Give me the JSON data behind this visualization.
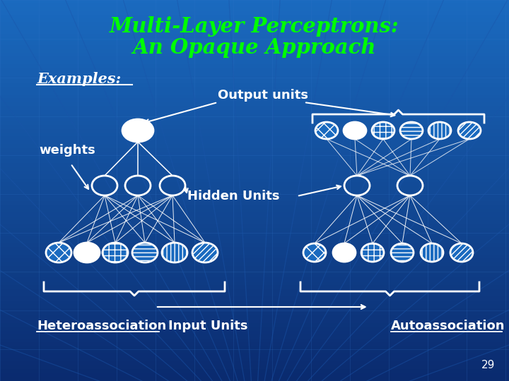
{
  "title_line1": "Multi-Layer Perceptrons:",
  "title_line2": "An Opaque Approach",
  "title_color": "#00ff00",
  "bg_color_top": "#1a6abf",
  "bg_color_bottom": "#0a2a6e",
  "label_examples": "Examples:",
  "label_output": "Output units",
  "label_weights": "weights",
  "label_hidden": "Hidden Units",
  "label_hetero": "Heteroassociation",
  "label_input": "Input Units",
  "label_auto": "Autoassociation",
  "label_page": "29",
  "white": "#ffffff",
  "node_bg": "#1a6abf"
}
